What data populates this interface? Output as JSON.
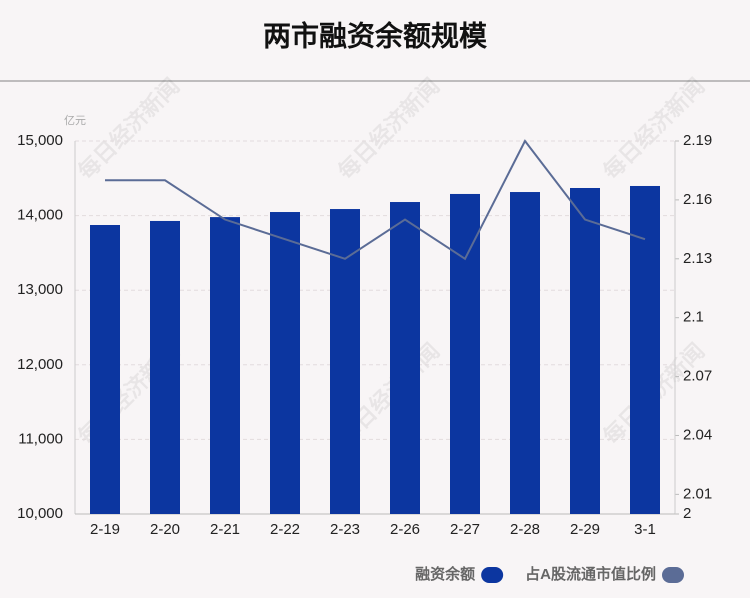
{
  "chart_data": {
    "type": "bar",
    "title": "两市融资余额规模",
    "y_unit": "亿元",
    "watermark": "每日经济新闻",
    "categories": [
      "2-19",
      "2-20",
      "2-21",
      "2-22",
      "2-23",
      "2-26",
      "2-27",
      "2-28",
      "2-29",
      "3-1"
    ],
    "series": [
      {
        "name": "融资余额",
        "type": "bar",
        "axis": "y",
        "color": "#0c36a0",
        "values": [
          13874,
          13928,
          13980,
          14048,
          14088,
          14182,
          14290,
          14316,
          14370,
          14397
        ]
      },
      {
        "name": "占A股流通市值比例",
        "type": "line",
        "axis": "y2",
        "color": "#5b6c96",
        "values": [
          2.17,
          2.17,
          2.15,
          2.14,
          2.13,
          2.15,
          2.13,
          2.19,
          2.15,
          2.14
        ]
      }
    ],
    "ylim": [
      10000,
      15000
    ],
    "yticks": [
      {
        "value": 10000,
        "label": "10,000"
      },
      {
        "value": 11000,
        "label": "11,000"
      },
      {
        "value": 12000,
        "label": "12,000"
      },
      {
        "value": 13000,
        "label": "13,000"
      },
      {
        "value": 14000,
        "label": "14,000"
      },
      {
        "value": 15000,
        "label": "15,000"
      }
    ],
    "y2lim": [
      2,
      2.19
    ],
    "y2ticks": [
      2,
      2.01,
      2.04,
      2.07,
      2.1,
      2.13,
      2.16,
      2.19
    ],
    "grid": true,
    "legend": "bottom-right"
  }
}
